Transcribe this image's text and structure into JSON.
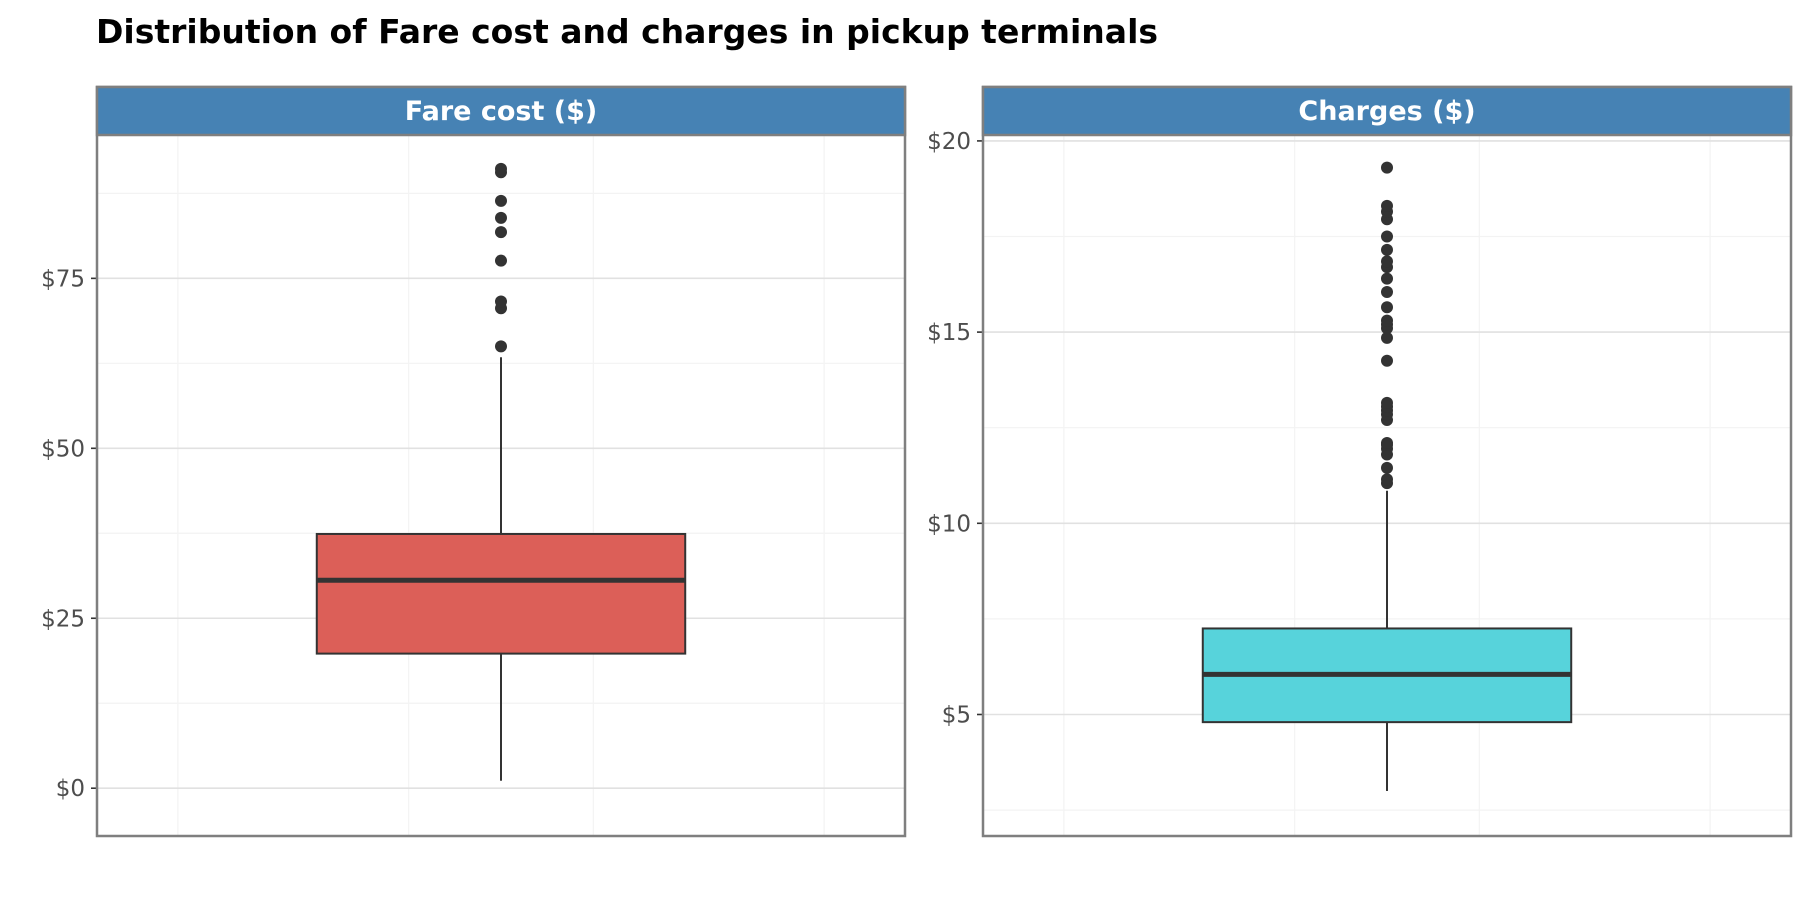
{
  "chart_data": {
    "type": "boxplot",
    "title": "Distribution of Fare cost and charges in pickup terminals",
    "panels": [
      {
        "name": "Fare cost ($)",
        "fill": "#dc5f58",
        "ylim": [
          -3.5,
          95.5
        ],
        "yticks": [
          0,
          25,
          50,
          75
        ],
        "ytick_labels": [
          "$0",
          "$25",
          "$50",
          "$75"
        ],
        "minor_yticks": [
          12.5,
          37.5,
          62.5,
          87.5
        ],
        "box": {
          "whisker_low": 1.1,
          "q1": 19.8,
          "median": 30.6,
          "q3": 37.4,
          "whisker_high": 63.4
        },
        "outliers": [
          65.0,
          70.6,
          71.6,
          77.6,
          81.8,
          83.9,
          86.4,
          90.6,
          91.1
        ]
      },
      {
        "name": "Charges ($)",
        "fill": "#57d3db",
        "ylim": [
          2.45,
          20.05
        ],
        "yticks": [
          5,
          10,
          15,
          20
        ],
        "ytick_labels": [
          "$5",
          "$10",
          "$15",
          "$20"
        ],
        "minor_yticks": [
          2.5,
          7.5,
          12.5,
          17.5
        ],
        "box": {
          "whisker_low": 3.0,
          "q1": 4.8,
          "median": 6.05,
          "q3": 7.25,
          "whisker_high": 10.85
        },
        "outliers": [
          11.05,
          11.15,
          11.45,
          11.8,
          11.95,
          12.05,
          12.1,
          12.7,
          12.85,
          12.95,
          13.05,
          13.15,
          14.25,
          14.85,
          15.1,
          15.2,
          15.3,
          15.65,
          16.05,
          16.4,
          16.7,
          16.85,
          17.15,
          17.5,
          17.95,
          18.15,
          18.3,
          19.3
        ]
      }
    ]
  },
  "colors": {
    "strip": "#4682b4",
    "panel_border": "#7f7f7f",
    "grid_major": "#e1e1e1",
    "grid_minor": "#f3f3f3",
    "box_line": "#333333",
    "point": "#333333"
  }
}
